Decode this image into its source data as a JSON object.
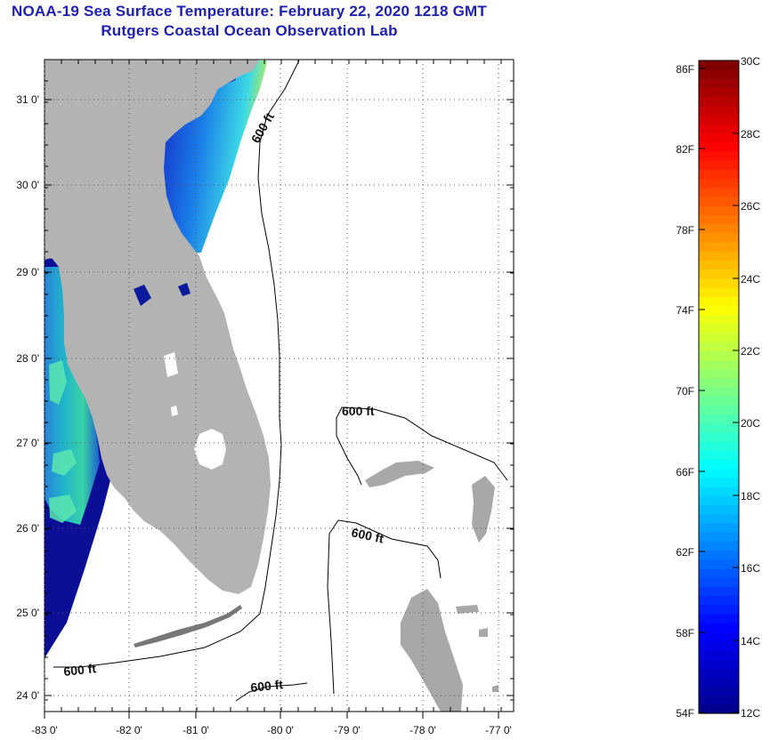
{
  "header": {
    "title": "NOAA-19 Sea Surface Temperature:  February 22, 2020 1218 GMT",
    "subtitle": "Rutgers Coastal Ocean Observation Lab"
  },
  "map": {
    "lon_labels": [
      "-83 0'",
      "-82 0'",
      "-81 0'",
      "-80 0'",
      "-79 0'",
      "-78 0'",
      "-77 0'"
    ],
    "lat_labels": [
      "31 0'",
      "30 0'",
      "29 0'",
      "28 0'",
      "27 0'",
      "26 0'",
      "25 0'",
      "24 0'"
    ],
    "isobath_labels": [
      "600 ft",
      "600 ft",
      "600 ft",
      "600 ft",
      "600 ft"
    ],
    "colors": {
      "land": "#b3b3b3",
      "no_data": "#ffffff",
      "cold": "#0a0f9a",
      "warm": "#8de857"
    }
  },
  "colorbar": {
    "fahrenheit_labels": [
      "86F",
      "82F",
      "78F",
      "74F",
      "70F",
      "66F",
      "62F",
      "58F",
      "54F"
    ],
    "celsius_labels": [
      "30C",
      "28C",
      "26C",
      "24C",
      "22C",
      "20C",
      "18C",
      "16C",
      "14C",
      "12C"
    ],
    "colors": [
      "#00008f",
      "#0000ff",
      "#0080ff",
      "#00ffff",
      "#80ff80",
      "#ffff00",
      "#ff8000",
      "#ff0000",
      "#800000"
    ]
  }
}
